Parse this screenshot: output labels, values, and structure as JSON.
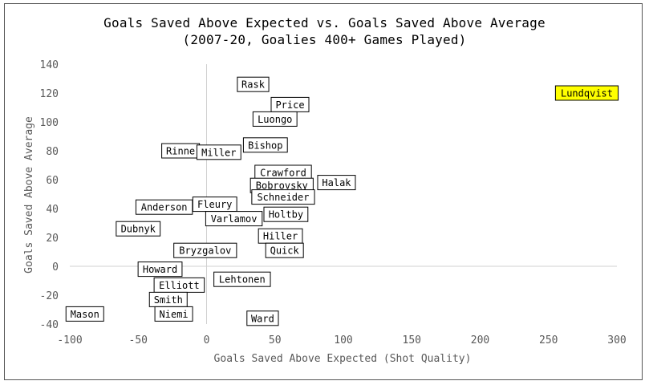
{
  "chart_data": {
    "type": "scatter",
    "title": "Goals Saved Above Expected vs. Goals Saved Above Average",
    "subtitle": "(2007-20, Goalies 400+ Games Played)",
    "xlabel": "Goals Saved Above Expected (Shot Quality)",
    "ylabel": "Goals Saved Above Average",
    "xlim": [
      -100,
      300
    ],
    "ylim": [
      -40,
      140
    ],
    "x_ticks": [
      -100,
      -50,
      0,
      50,
      100,
      150,
      200,
      250,
      300
    ],
    "y_ticks": [
      -40,
      -20,
      0,
      20,
      40,
      60,
      80,
      100,
      120,
      140
    ],
    "grid": false,
    "highlight_color": "#ffff00",
    "points": [
      {
        "name": "Lundqvist",
        "x": 278,
        "y": 120,
        "highlight": true
      },
      {
        "name": "Rask",
        "x": 34,
        "y": 126
      },
      {
        "name": "Price",
        "x": 61,
        "y": 112
      },
      {
        "name": "Luongo",
        "x": 50,
        "y": 102
      },
      {
        "name": "Bishop",
        "x": 43,
        "y": 84
      },
      {
        "name": "Rinne",
        "x": -19,
        "y": 80
      },
      {
        "name": "Miller",
        "x": 9,
        "y": 79
      },
      {
        "name": "Crawford",
        "x": 56,
        "y": 65
      },
      {
        "name": "Halak",
        "x": 95,
        "y": 58
      },
      {
        "name": "Bobrovsky",
        "x": 55,
        "y": 56
      },
      {
        "name": "Schneider",
        "x": 56,
        "y": 48
      },
      {
        "name": "Anderson",
        "x": -31,
        "y": 41
      },
      {
        "name": "Fleury",
        "x": 6,
        "y": 43
      },
      {
        "name": "Varlamov",
        "x": 20,
        "y": 33
      },
      {
        "name": "Holtby",
        "x": 58,
        "y": 36
      },
      {
        "name": "Dubnyk",
        "x": -50,
        "y": 26
      },
      {
        "name": "Hiller",
        "x": 54,
        "y": 21
      },
      {
        "name": "Bryzgalov",
        "x": -1,
        "y": 11
      },
      {
        "name": "Quick",
        "x": 57,
        "y": 11
      },
      {
        "name": "Howard",
        "x": -34,
        "y": -2
      },
      {
        "name": "Lehtonen",
        "x": 26,
        "y": -9
      },
      {
        "name": "Elliott",
        "x": -20,
        "y": -13
      },
      {
        "name": "Smith",
        "x": -28,
        "y": -23
      },
      {
        "name": "Niemi",
        "x": -24,
        "y": -33
      },
      {
        "name": "Mason",
        "x": -89,
        "y": -33
      },
      {
        "name": "Ward",
        "x": 41,
        "y": -36
      }
    ]
  }
}
